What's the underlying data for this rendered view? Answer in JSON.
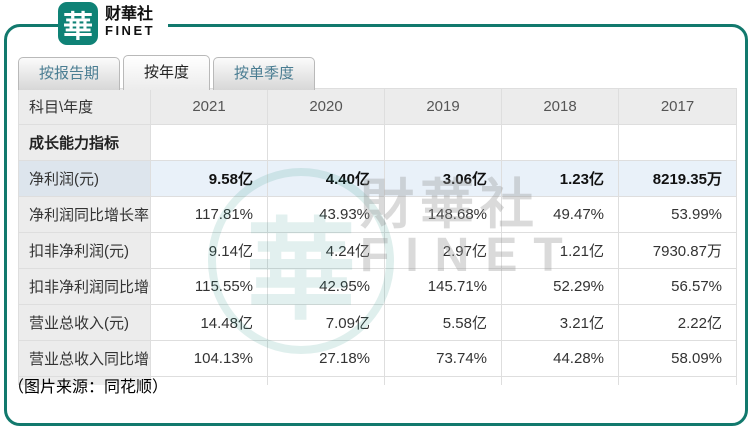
{
  "brand": {
    "logo_char": "華",
    "name_cn": "财華社",
    "name_en": "FINET"
  },
  "tabs": [
    {
      "label": "按报告期",
      "active": false
    },
    {
      "label": "按年度",
      "active": true
    },
    {
      "label": "按单季度",
      "active": false
    }
  ],
  "table": {
    "corner_header": "科目\\年度",
    "years": [
      "2021",
      "2020",
      "2019",
      "2018",
      "2017"
    ],
    "section_header": "成长能力指标",
    "rows": [
      {
        "label": "净利润(元)",
        "values": [
          "9.58亿",
          "4.40亿",
          "3.06亿",
          "1.23亿",
          "8219.35万"
        ],
        "highlight": true
      },
      {
        "label": "净利润同比增长率",
        "values": [
          "117.81%",
          "43.93%",
          "148.68%",
          "49.47%",
          "53.99%"
        ],
        "highlight": false
      },
      {
        "label": "扣非净利润(元)",
        "values": [
          "9.14亿",
          "4.24亿",
          "2.97亿",
          "1.21亿",
          "7930.87万"
        ],
        "highlight": false
      },
      {
        "label": "扣非净利润同比增长率",
        "values": [
          "115.55%",
          "42.95%",
          "145.71%",
          "52.29%",
          "56.57%"
        ],
        "highlight": false
      },
      {
        "label": "营业总收入(元)",
        "values": [
          "14.48亿",
          "7.09亿",
          "5.58亿",
          "3.21亿",
          "2.22亿"
        ],
        "highlight": false
      },
      {
        "label": "营业总收入同比增长率",
        "values": [
          "104.13%",
          "27.18%",
          "73.74%",
          "44.28%",
          "58.09%"
        ],
        "highlight": false
      }
    ]
  },
  "watermark": {
    "cn": "財華社",
    "en": "FINET",
    "logo_char": "華"
  },
  "caption": "（图片来源：同花顺）",
  "colors": {
    "accent_teal": "#12796d",
    "logo_teal": "#0f8276",
    "tab_inactive_text": "#4a7d92",
    "header_bg": "#ececec",
    "highlight_row_bg": "#e9f1f9",
    "highlight_label_bg": "#dde5ed",
    "grid_line": "#dedede"
  }
}
